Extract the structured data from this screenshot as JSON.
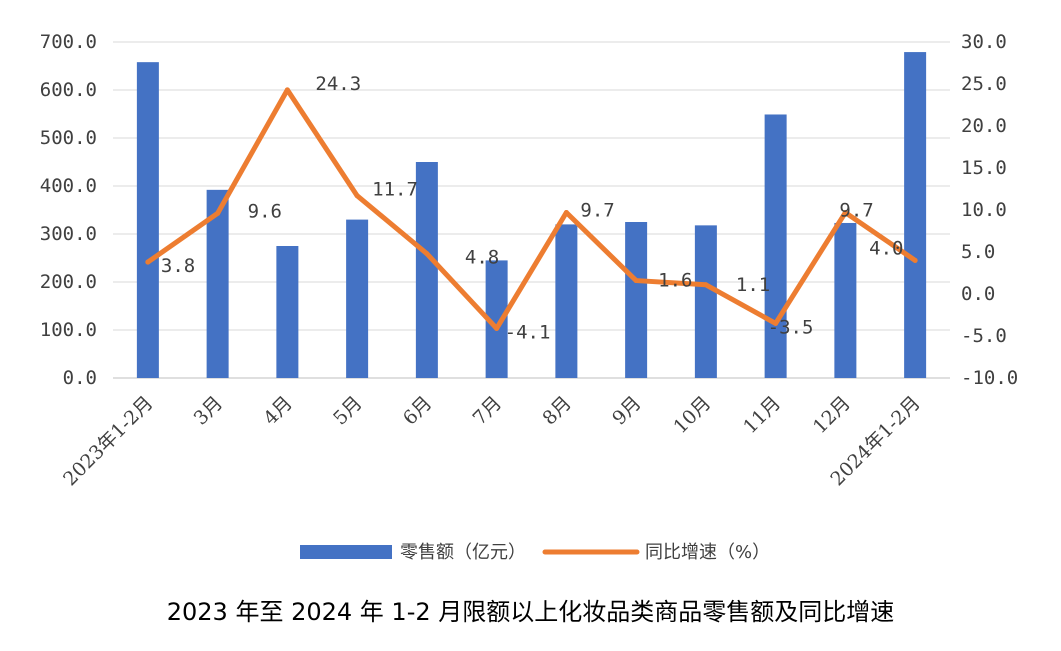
{
  "chart_data": {
    "type": "bar+line",
    "title": "2023 年至 2024 年 1-2 月限额以上化妆品类商品零售额及同比增速",
    "categories": [
      "2023年1-2月",
      "3月",
      "4月",
      "5月",
      "6月",
      "7月",
      "8月",
      "9月",
      "10月",
      "11月",
      "12月",
      "2024年1-2月"
    ],
    "series": [
      {
        "name": "零售额（亿元）",
        "type": "bar",
        "axis": "left",
        "color": "#4472C4",
        "values": [
          658,
          392,
          275,
          330,
          450,
          245,
          320,
          325,
          318,
          549,
          323,
          679
        ]
      },
      {
        "name": "同比增速（%）",
        "type": "line",
        "axis": "right",
        "color": "#ED7D31",
        "values": [
          3.8,
          9.6,
          24.3,
          11.7,
          4.8,
          -4.1,
          9.7,
          1.6,
          1.1,
          -3.5,
          9.7,
          4.0
        ],
        "labels": [
          "3.8",
          "9.6",
          "24.3",
          "11.7",
          "4.8",
          "-4.1",
          "9.7",
          "1.6",
          "1.1",
          "-3.5",
          "9.7",
          "4.0"
        ]
      }
    ],
    "y_left": {
      "ticks": [
        "0.0",
        "100.0",
        "200.0",
        "300.0",
        "400.0",
        "500.0",
        "600.0",
        "700.0"
      ],
      "ylim": [
        0,
        700
      ]
    },
    "y_right": {
      "ticks": [
        "-10.0",
        "-5.0",
        "0.0",
        "5.0",
        "10.0",
        "15.0",
        "20.0",
        "25.0",
        "30.0"
      ],
      "ylim": [
        -10,
        30
      ]
    },
    "grid": true,
    "legend": "bottom"
  }
}
